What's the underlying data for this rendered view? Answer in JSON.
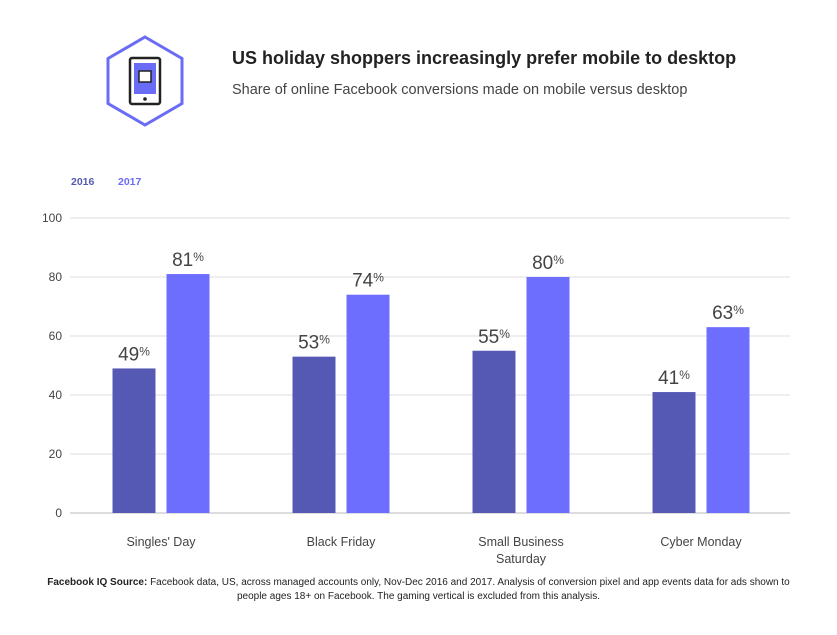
{
  "header": {
    "title": "US holiday shoppers increasingly prefer mobile to desktop",
    "subtitle": "Share of online Facebook conversions made on mobile versus desktop",
    "icon": "mobile-phone-hexagon-icon"
  },
  "colors": {
    "series_2016": "#5659b3",
    "series_2017": "#6e6efe",
    "accent": "#6b6cf6",
    "grid": "#dddddd"
  },
  "chart_data": {
    "type": "bar",
    "title": "Share of online Facebook conversions made on mobile versus desktop",
    "xlabel": "",
    "ylabel": "",
    "ylim": [
      0,
      100
    ],
    "yticks": [
      0,
      20,
      40,
      60,
      80,
      100
    ],
    "grid": true,
    "legend_position": "top-left",
    "categories": [
      [
        "Singles' Day"
      ],
      [
        "Black Friday"
      ],
      [
        "Small Business",
        "Saturday"
      ],
      [
        "Cyber Monday"
      ]
    ],
    "series": [
      {
        "name": "2016",
        "values": [
          49,
          53,
          55,
          41
        ],
        "labels": [
          "49",
          "53",
          "55",
          "41"
        ]
      },
      {
        "name": "2017",
        "values": [
          81,
          74,
          80,
          63
        ],
        "labels": [
          "81",
          "74",
          "80",
          "63"
        ]
      }
    ],
    "value_suffix": "%"
  },
  "footer": {
    "source_label": "Facebook IQ Source:",
    "source_text": "Facebook data, US, across managed accounts only, Nov-Dec 2016 and 2017. Analysis of conversion pixel and app events data for ads shown to people ages 18+ on Facebook. The gaming vertical is excluded from this analysis."
  }
}
